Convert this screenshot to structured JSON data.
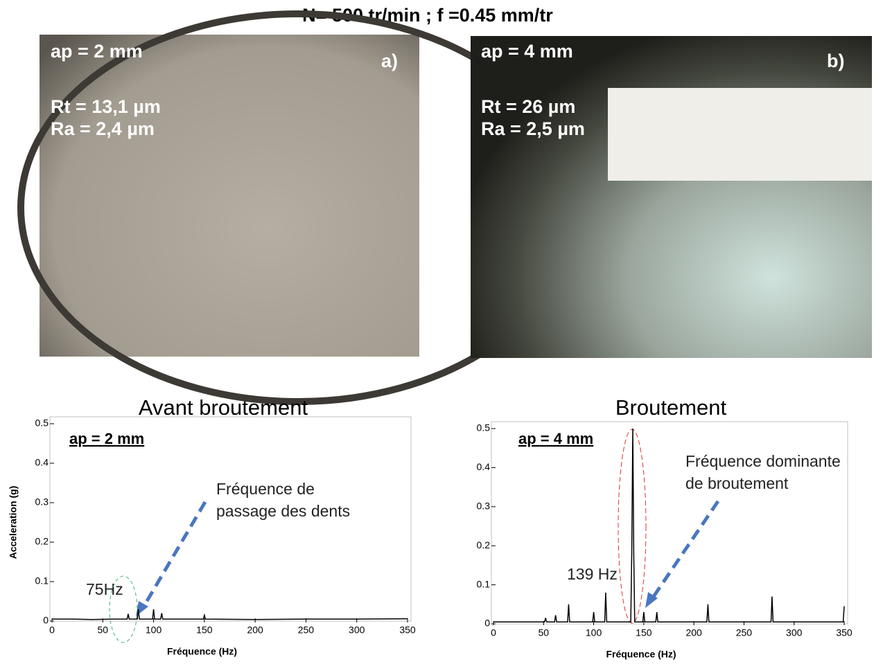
{
  "title": "N= 500 tr/min ; f =0.45 mm/tr",
  "photos": [
    {
      "ap": "ap = 2 mm",
      "tag": "a)",
      "rt": "Rt = 13,1 µm",
      "ra": "Ra = 2,4 µm"
    },
    {
      "ap": "ap = 4 mm",
      "tag": "b)",
      "rt": "Rt = 26 µm",
      "ra": "Ra = 2,5 µm"
    }
  ],
  "chart_data": [
    {
      "type": "line",
      "title": "Avant  broutement",
      "x_label": "Fréquence (Hz)",
      "y_label": "Acceleration (g)",
      "annotations": {
        "ap": "ap = 2 mm",
        "note": [
          "Fréquence de",
          "passage des dents"
        ],
        "peak": "75Hz"
      },
      "color": "#000000",
      "x": [
        0,
        20,
        40,
        60,
        74,
        75,
        76,
        84,
        85,
        86,
        99,
        100,
        101,
        107,
        108,
        109,
        149,
        150,
        151,
        200,
        250,
        300,
        350
      ],
      "values": [
        0.005,
        0.005,
        0.004,
        0.005,
        0.005,
        0.018,
        0.005,
        0.005,
        0.03,
        0.005,
        0.005,
        0.03,
        0.005,
        0.005,
        0.02,
        0.005,
        0.005,
        0.015,
        0.005,
        0.004,
        0.005,
        0.005,
        0.006
      ],
      "xlim": [
        0,
        350
      ],
      "xticks": [
        0,
        50,
        100,
        150,
        200,
        250,
        300,
        350
      ],
      "ylim": [
        0,
        0.5
      ],
      "yticks": [
        0,
        0.1,
        0.2,
        0.3,
        0.4,
        0.5
      ]
    },
    {
      "type": "line",
      "title": "Broutement",
      "x_label": "Fréquence (Hz)",
      "annotations": {
        "ap": "ap = 4 mm",
        "note": [
          "Fréquence dominante",
          "de broutement"
        ],
        "peak": "139 Hz"
      },
      "color": "#000000",
      "x": [
        0,
        51,
        52,
        53,
        61,
        62,
        63,
        74,
        75,
        76,
        99,
        100,
        101,
        111,
        112,
        113,
        137,
        138,
        139,
        140,
        141,
        149,
        150,
        151,
        162,
        163,
        164,
        213,
        214,
        215,
        277,
        278,
        279,
        349,
        350
      ],
      "values": [
        0.005,
        0.005,
        0.015,
        0.005,
        0.005,
        0.022,
        0.005,
        0.005,
        0.05,
        0.005,
        0.005,
        0.03,
        0.005,
        0.005,
        0.08,
        0.005,
        0.005,
        0.18,
        0.5,
        0.18,
        0.005,
        0.005,
        0.03,
        0.005,
        0.005,
        0.03,
        0.005,
        0.005,
        0.05,
        0.005,
        0.005,
        0.07,
        0.005,
        0.005,
        0.045
      ],
      "xlim": [
        0,
        350
      ],
      "xticks": [
        0,
        50,
        100,
        150,
        200,
        250,
        300,
        350
      ],
      "ylim": [
        0,
        0.5
      ],
      "yticks": [
        0,
        0.1,
        0.2,
        0.3,
        0.4,
        0.5
      ]
    }
  ]
}
